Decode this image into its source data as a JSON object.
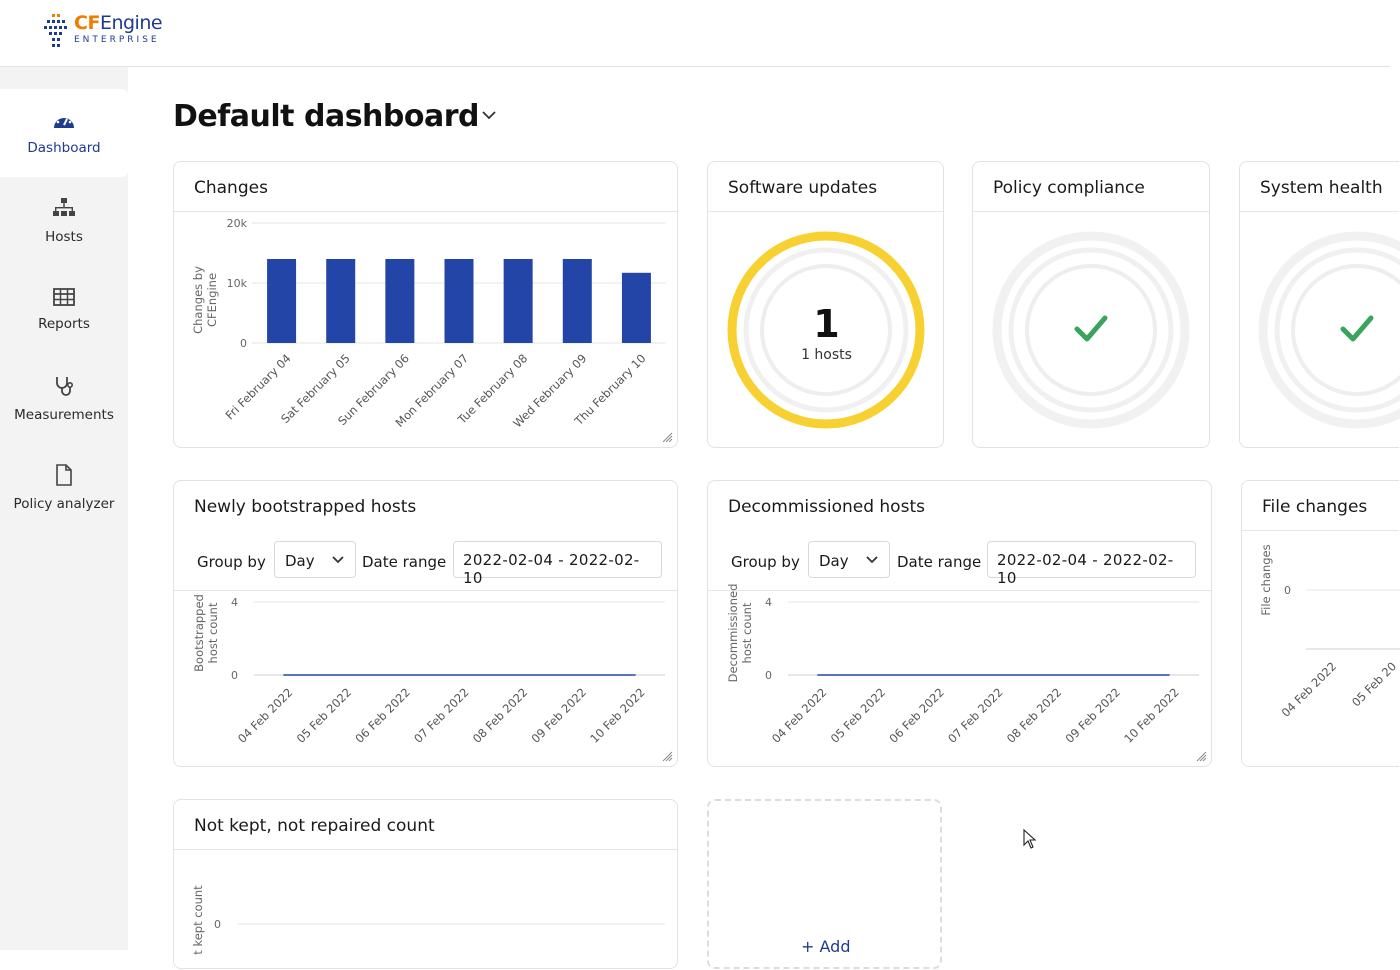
{
  "brand": {
    "name_cf": "CF",
    "name_engine": "Engine",
    "subtitle": "ENTERPRISE"
  },
  "sidebar": {
    "items": [
      {
        "label": "Dashboard",
        "icon": "dashboard-gauge-icon",
        "active": true
      },
      {
        "label": "Hosts",
        "icon": "hosts-hierarchy-icon",
        "active": false
      },
      {
        "label": "Reports",
        "icon": "reports-table-icon",
        "active": false
      },
      {
        "label": "Measurements",
        "icon": "stethoscope-icon",
        "active": false
      },
      {
        "label": "Policy analyzer",
        "icon": "document-icon",
        "active": false
      }
    ]
  },
  "page": {
    "title": "Default dashboard"
  },
  "colors": {
    "accent": "#1f3b8f",
    "bar": "#2345a8",
    "warning": "#f7d132",
    "success": "#3aa35c"
  },
  "widgets": {
    "changes": {
      "title": "Changes",
      "chart_data": {
        "type": "bar",
        "ylabel": "Changes by CFEngine",
        "yticks": [
          "20k",
          "10k",
          "0"
        ],
        "ylim": [
          0,
          20000
        ],
        "categories": [
          "Fri February 04",
          "Sat February 05",
          "Sun February 06",
          "Mon February 07",
          "Tue February 08",
          "Wed February 09",
          "Thu February 10"
        ],
        "values": [
          14000,
          14000,
          14000,
          14000,
          14000,
          14000,
          11700
        ]
      }
    },
    "software_updates": {
      "title": "Software updates",
      "count": "1",
      "unit": "1 hosts"
    },
    "policy_compliance": {
      "title": "Policy compliance",
      "icon": "check-icon"
    },
    "system_health": {
      "title": "System health",
      "icon": "check-icon"
    },
    "newly_bootstrapped": {
      "title": "Newly bootstrapped hosts",
      "group_by_label": "Group by",
      "group_by_value": "Day",
      "date_range_label": "Date range",
      "date_range_value": "2022-02-04 - 2022-02-10",
      "chart_data": {
        "type": "line",
        "ylabel": "Bootstrapped host count",
        "yticks": [
          "4",
          "0"
        ],
        "ylim": [
          0,
          4
        ],
        "categories": [
          "04 Feb 2022",
          "05 Feb 2022",
          "06 Feb 2022",
          "07 Feb 2022",
          "08 Feb 2022",
          "09 Feb 2022",
          "10 Feb 2022"
        ],
        "values": [
          0,
          0,
          0,
          0,
          0,
          0,
          0
        ]
      }
    },
    "decommissioned": {
      "title": "Decommissioned hosts",
      "group_by_label": "Group by",
      "group_by_value": "Day",
      "date_range_label": "Date range",
      "date_range_value": "2022-02-04 - 2022-02-10",
      "chart_data": {
        "type": "line",
        "ylabel": "Decommissioned host count",
        "yticks": [
          "4",
          "0"
        ],
        "ylim": [
          0,
          4
        ],
        "categories": [
          "04 Feb 2022",
          "05 Feb 2022",
          "06 Feb 2022",
          "07 Feb 2022",
          "08 Feb 2022",
          "09 Feb 2022",
          "10 Feb 2022"
        ],
        "values": [
          0,
          0,
          0,
          0,
          0,
          0,
          0
        ]
      }
    },
    "file_changes": {
      "title": "File changes",
      "chart_data": {
        "type": "line",
        "ylabel": "File changes",
        "yticks": [
          "0"
        ],
        "categories": [
          "04 Feb 2022",
          "05 Feb 20"
        ],
        "values": [
          0,
          0
        ]
      }
    },
    "not_kept": {
      "title": "Not kept, not repaired count",
      "chart_data": {
        "type": "line",
        "ylabel": "t kept count",
        "yticks": [
          "0"
        ],
        "values": []
      }
    },
    "add": {
      "label": "+ Add"
    }
  }
}
